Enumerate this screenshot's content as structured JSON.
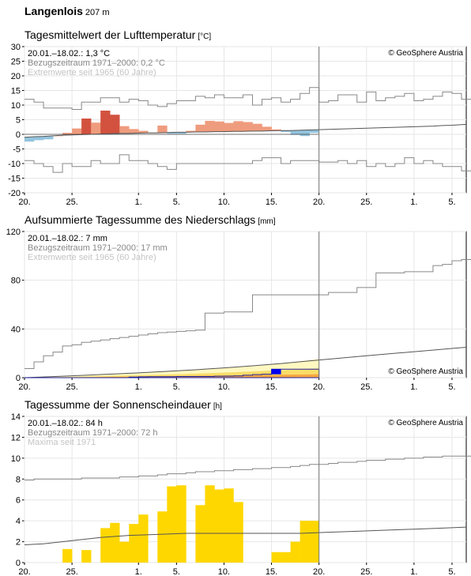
{
  "station": {
    "name": "Langenlois",
    "altitude": "207 m"
  },
  "copyright": "© GeoSphere Austria",
  "x_ticks": [
    {
      "day": 0,
      "label": "20."
    },
    {
      "day": 5,
      "label": "25."
    },
    {
      "day": 12,
      "label": "1."
    },
    {
      "day": 16,
      "label": "5."
    },
    {
      "day": 21,
      "label": "10."
    },
    {
      "day": 26,
      "label": "15."
    },
    {
      "day": 31,
      "label": "20."
    },
    {
      "day": 36,
      "label": "25."
    },
    {
      "day": 41,
      "label": "1."
    },
    {
      "day": 45,
      "label": "5."
    }
  ],
  "chart_data": [
    {
      "type": "bar",
      "title": "Tagesmittelwert der Lufttemperatur",
      "unit": "[°C]",
      "legend": {
        "current": "20.01.–18.02.: 1,3 °C",
        "reference": "Bezugszeitraum 1971–2000: 0,2 °C",
        "extremes": "Extremwerte seit 1965 (60 Jahre)"
      },
      "ylim": [
        -20,
        30
      ],
      "yticks": [
        30,
        25,
        20,
        15,
        10,
        5,
        0,
        -5,
        -10,
        -15,
        -20
      ],
      "grid": true,
      "colors": {
        "warm_light": "#ef9c7e",
        "warm_dark": "#d2523f",
        "cold": "#93c4de",
        "line": "#888888",
        "mean": "#555555",
        "today": "#777777"
      },
      "x_range": [
        0,
        46.5
      ],
      "today_day": 31,
      "deviation": [
        -1.5,
        -1.2,
        -1.0,
        0,
        0.8,
        2.2,
        5.5,
        4.0,
        8.0,
        6.5,
        2.5,
        1.5,
        0.8,
        0,
        2.5,
        -0.4,
        -0.5,
        0.5,
        2.5,
        3.8,
        3.5,
        3.0,
        3.5,
        3.2,
        2.5,
        1.5,
        0.5,
        -0.5,
        -1.5,
        -2.0,
        -1.0
      ],
      "mean_x": [
        0,
        1,
        2,
        3,
        4,
        5,
        6,
        7,
        8,
        9,
        10,
        11,
        12,
        13,
        14,
        15,
        16,
        17,
        18,
        19,
        20,
        21,
        22,
        23,
        24,
        25,
        26,
        27,
        28,
        29,
        30,
        31,
        32,
        33,
        34,
        35,
        36,
        37,
        38,
        39,
        40,
        41,
        42,
        43,
        44,
        45,
        46,
        46.5
      ],
      "mean_y": [
        -1.0,
        -0.8,
        -0.7,
        -0.5,
        -0.3,
        -0.2,
        -0.1,
        0,
        0.1,
        0.2,
        0.3,
        0.3,
        0.4,
        0.5,
        0.5,
        0.6,
        0.7,
        0.7,
        0.8,
        0.8,
        0.9,
        0.9,
        1.0,
        1.0,
        1.1,
        1.1,
        1.2,
        1.3,
        1.3,
        1.4,
        1.5,
        1.6,
        1.7,
        1.8,
        1.9,
        2.0,
        2.1,
        2.2,
        2.3,
        2.4,
        2.5,
        2.6,
        2.7,
        2.8,
        3.0,
        3.1,
        3.3,
        3.4
      ],
      "max_extreme": [
        12,
        11,
        9,
        9,
        9,
        8.5,
        11,
        11,
        12.5,
        12.5,
        11,
        12,
        11.5,
        10,
        9.5,
        10.5,
        11.5,
        11.5,
        13,
        12.5,
        13.5,
        12.5,
        12.5,
        13.5,
        10,
        12,
        12.5,
        11,
        12,
        14,
        16,
        11,
        11.5,
        13.5,
        13.5,
        11,
        14.5,
        11.5,
        12.5,
        13,
        14,
        11.5,
        12,
        13,
        14.5,
        14,
        12
      ],
      "min_extreme": [
        -9,
        -10,
        -11,
        -13,
        -10,
        -11,
        -11,
        -9,
        -10,
        -10,
        -7,
        -9,
        -9,
        -10,
        -11,
        -12,
        -10,
        -10,
        -10,
        -10,
        -10,
        -10,
        -10,
        -10,
        -9,
        -8,
        -8,
        -10,
        -9,
        -9,
        -9,
        -9.5,
        -9.5,
        -9,
        -10,
        -9,
        -11,
        -10,
        -11,
        -10,
        -8,
        -10,
        -9,
        -10,
        -11,
        -11,
        -12.5
      ]
    },
    {
      "type": "area",
      "title": "Aufsummierte Tagessumme des Niederschlags",
      "unit": "[mm]",
      "legend": {
        "current": "20.01.–18.02.: 7 mm",
        "reference": "Bezugszeitraum 1971–2000: 17 mm",
        "extremes": "Extremwerte seit 1965 (60 Jahre)"
      },
      "ylim": [
        0,
        120
      ],
      "yticks": [
        120,
        80,
        40,
        0
      ],
      "grid": true,
      "colors": {
        "band_light": "#fff8c0",
        "band_mid": "#f9dd6a",
        "band_orange": "#f6a640",
        "current": "#2020a0",
        "current_fill": "#0000ee",
        "line": "#888888",
        "mean": "#555555",
        "today": "#777777"
      },
      "x_range": [
        0,
        46.5
      ],
      "today_day": 31,
      "light_band_upper": [
        0,
        0.3,
        0.5,
        0.8,
        1.1,
        1.4,
        1.7,
        2.0,
        2.3,
        2.6,
        3.0,
        3.4,
        3.8,
        4.2,
        4.7,
        5.2,
        5.7,
        6.2,
        6.7,
        7.2,
        7.6,
        8.0,
        8.4,
        8.9,
        9.4,
        10.0,
        10.8,
        11.6,
        12.5,
        13.5,
        14.5,
        15.5
      ],
      "mid_band_upper": [
        0,
        0.1,
        0.2,
        0.3,
        0.4,
        0.6,
        0.8,
        1.0,
        1.2,
        1.4,
        1.6,
        1.8,
        2.0,
        2.2,
        2.4,
        2.6,
        2.8,
        3.0,
        3.3,
        3.6,
        3.9,
        4.2,
        4.5,
        4.8,
        5.1,
        5.4,
        5.8,
        6.2,
        6.6,
        7.0,
        7.3,
        7.6
      ],
      "orange_band_upper": [
        0,
        0,
        0,
        0,
        0.1,
        0.2,
        0.3,
        0.4,
        0.5,
        0.6,
        0.7,
        0.8,
        0.9,
        1.0,
        1.1,
        1.2,
        1.3,
        1.4,
        1.5,
        1.6,
        1.7,
        1.8,
        1.9,
        2.0,
        2.1,
        2.2,
        2.3,
        2.4,
        2.5,
        2.6,
        2.7,
        2.8
      ],
      "current": [
        0,
        0,
        0,
        0,
        0,
        0,
        0,
        0,
        0,
        0,
        0,
        0.5,
        0.7,
        0.8,
        0.8,
        0.8,
        1.0,
        1.0,
        1.0,
        1.0,
        1.2,
        1.3,
        1.5,
        2.0,
        2.5,
        2.8,
        7.0,
        7.0,
        7.0,
        7.0,
        7.0
      ],
      "mean_x": [
        0,
        3,
        6,
        9,
        12,
        15,
        18,
        21,
        24,
        27,
        30,
        33,
        36,
        39,
        42,
        45,
        46.5
      ],
      "mean_y": [
        0,
        0.9,
        1.9,
        2.9,
        4.0,
        5.2,
        6.5,
        8.0,
        9.7,
        11.6,
        13.8,
        15.9,
        18.0,
        20.0,
        22.0,
        24.0,
        25.0
      ],
      "max_extreme": [
        7.5,
        13,
        18,
        21,
        26,
        27,
        29,
        30,
        31,
        32,
        33,
        34,
        35,
        36,
        37,
        37.5,
        38,
        38.5,
        39,
        53,
        53,
        54,
        54,
        54,
        68,
        68,
        68,
        68,
        68,
        68,
        68,
        68,
        70,
        70,
        70,
        74,
        74,
        86,
        86,
        86,
        87,
        87,
        87,
        92,
        93,
        96,
        97
      ],
      "min_extreme": [
        0,
        0,
        0,
        0,
        0,
        0,
        0,
        0,
        0,
        0,
        0,
        0,
        0,
        0,
        0,
        0,
        0,
        0,
        0,
        0,
        0,
        0,
        0,
        0,
        0,
        0,
        0,
        0,
        0,
        0,
        0,
        0,
        0,
        0,
        0,
        0,
        0,
        0,
        0,
        0,
        0,
        0,
        0,
        0,
        0,
        0,
        0
      ]
    },
    {
      "type": "bar",
      "title": "Tagessumme der Sonnenscheindauer",
      "unit": "[h]",
      "legend": {
        "current": "20.01.–18.02.: 84 h",
        "reference": "Bezugszeitraum 1971–2000: 72 h",
        "extremes": "Maxima seit 1971"
      },
      "ylim": [
        0,
        14
      ],
      "yticks": [
        14,
        12,
        10,
        8,
        6,
        4,
        2,
        0
      ],
      "grid": true,
      "colors": {
        "bar": "#ffd700",
        "line": "#888888",
        "mean": "#555555",
        "today": "#777777"
      },
      "x_range": [
        0,
        46.5
      ],
      "today_day": 31,
      "values": [
        0,
        0,
        0,
        0,
        1.3,
        0,
        1.2,
        0,
        3.3,
        3.8,
        2.0,
        3.7,
        4.6,
        0,
        4.9,
        7.3,
        7.4,
        0,
        5.5,
        7.4,
        7.0,
        7.1,
        5.8,
        0,
        0,
        0,
        1.0,
        1.0,
        2.0,
        4.0,
        4.0
      ],
      "mean_x": [
        0,
        2,
        5,
        8,
        11,
        14,
        17,
        20,
        23,
        26,
        29,
        32,
        35,
        38,
        41,
        44,
        46.5
      ],
      "mean_y": [
        1.7,
        1.8,
        2.1,
        2.4,
        2.6,
        2.7,
        2.8,
        2.8,
        2.8,
        2.8,
        2.8,
        2.9,
        3.0,
        3.1,
        3.2,
        3.3,
        3.4
      ],
      "max_extreme": [
        7.9,
        8.0,
        8.0,
        8.0,
        8.0,
        8.0,
        8.1,
        8.1,
        8.1,
        8.1,
        8.2,
        8.2,
        8.3,
        8.3,
        8.4,
        8.5,
        8.5,
        8.6,
        8.7,
        8.7,
        8.8,
        8.8,
        8.9,
        8.9,
        9.0,
        9.0,
        9.1,
        9.1,
        9.2,
        9.3,
        9.4,
        9.4,
        9.5,
        9.6,
        9.6,
        9.7,
        9.8,
        9.8,
        9.9,
        9.9,
        10.0,
        10.0,
        10.1,
        10.1,
        10.2,
        10.2,
        10.2
      ]
    }
  ]
}
